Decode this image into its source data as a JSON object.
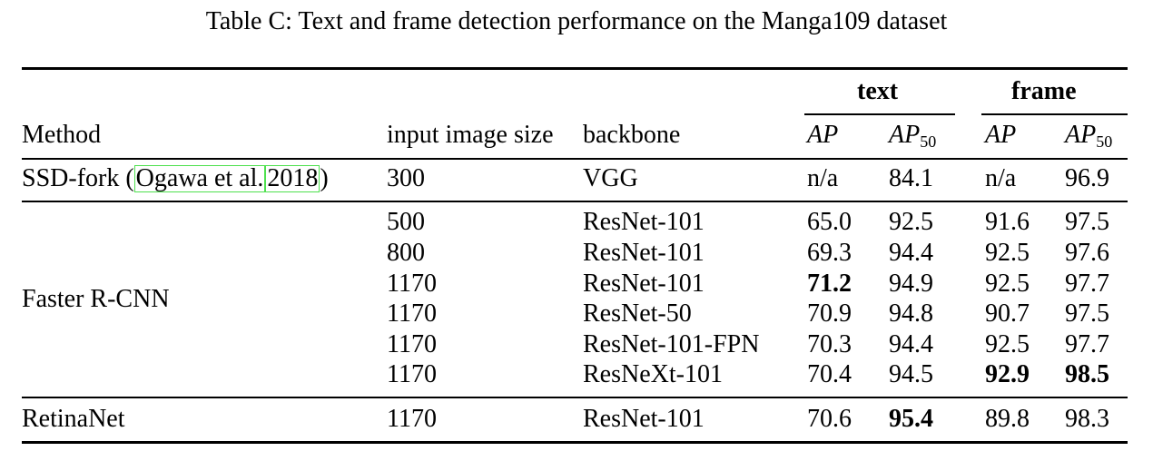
{
  "caption": "Table C: Text and frame detection performance on the Manga109 dataset",
  "header": {
    "group_text": "text",
    "group_frame": "frame",
    "method": "Method",
    "input_size": "input image size",
    "backbone": "backbone",
    "ap": "AP",
    "ap50_base": "AP",
    "ap50_sub": "50"
  },
  "rows": {
    "ssd": {
      "method_prefix": "SSD-fork (",
      "cite_author": "Ogawa et al.",
      "cite_year": "2018",
      "method_suffix": ")",
      "size": "300",
      "backbone": "VGG",
      "text_ap": "n/a",
      "text_ap50": "84.1",
      "frame_ap": "n/a",
      "frame_ap50": "96.9"
    },
    "frcnn_method": "Faster R-CNN",
    "frcnn": [
      {
        "size": "500",
        "backbone": "ResNet-101",
        "text_ap": "65.0",
        "text_ap50": "92.5",
        "frame_ap": "91.6",
        "frame_ap50": "97.5"
      },
      {
        "size": "800",
        "backbone": "ResNet-101",
        "text_ap": "69.3",
        "text_ap50": "94.4",
        "frame_ap": "92.5",
        "frame_ap50": "97.6"
      },
      {
        "size": "1170",
        "backbone": "ResNet-101",
        "text_ap": "71.2",
        "text_ap50": "94.9",
        "frame_ap": "92.5",
        "frame_ap50": "97.7"
      },
      {
        "size": "1170",
        "backbone": "ResNet-50",
        "text_ap": "70.9",
        "text_ap50": "94.8",
        "frame_ap": "90.7",
        "frame_ap50": "97.5"
      },
      {
        "size": "1170",
        "backbone": "ResNet-101-FPN",
        "text_ap": "70.3",
        "text_ap50": "94.4",
        "frame_ap": "92.5",
        "frame_ap50": "97.7"
      },
      {
        "size": "1170",
        "backbone": "ResNeXt-101",
        "text_ap": "70.4",
        "text_ap50": "94.5",
        "frame_ap": "92.9",
        "frame_ap50": "98.5"
      }
    ],
    "retina": {
      "method": "RetinaNet",
      "size": "1170",
      "backbone": "ResNet-101",
      "text_ap": "70.6",
      "text_ap50": "95.4",
      "frame_ap": "89.8",
      "frame_ap50": "98.3"
    }
  }
}
